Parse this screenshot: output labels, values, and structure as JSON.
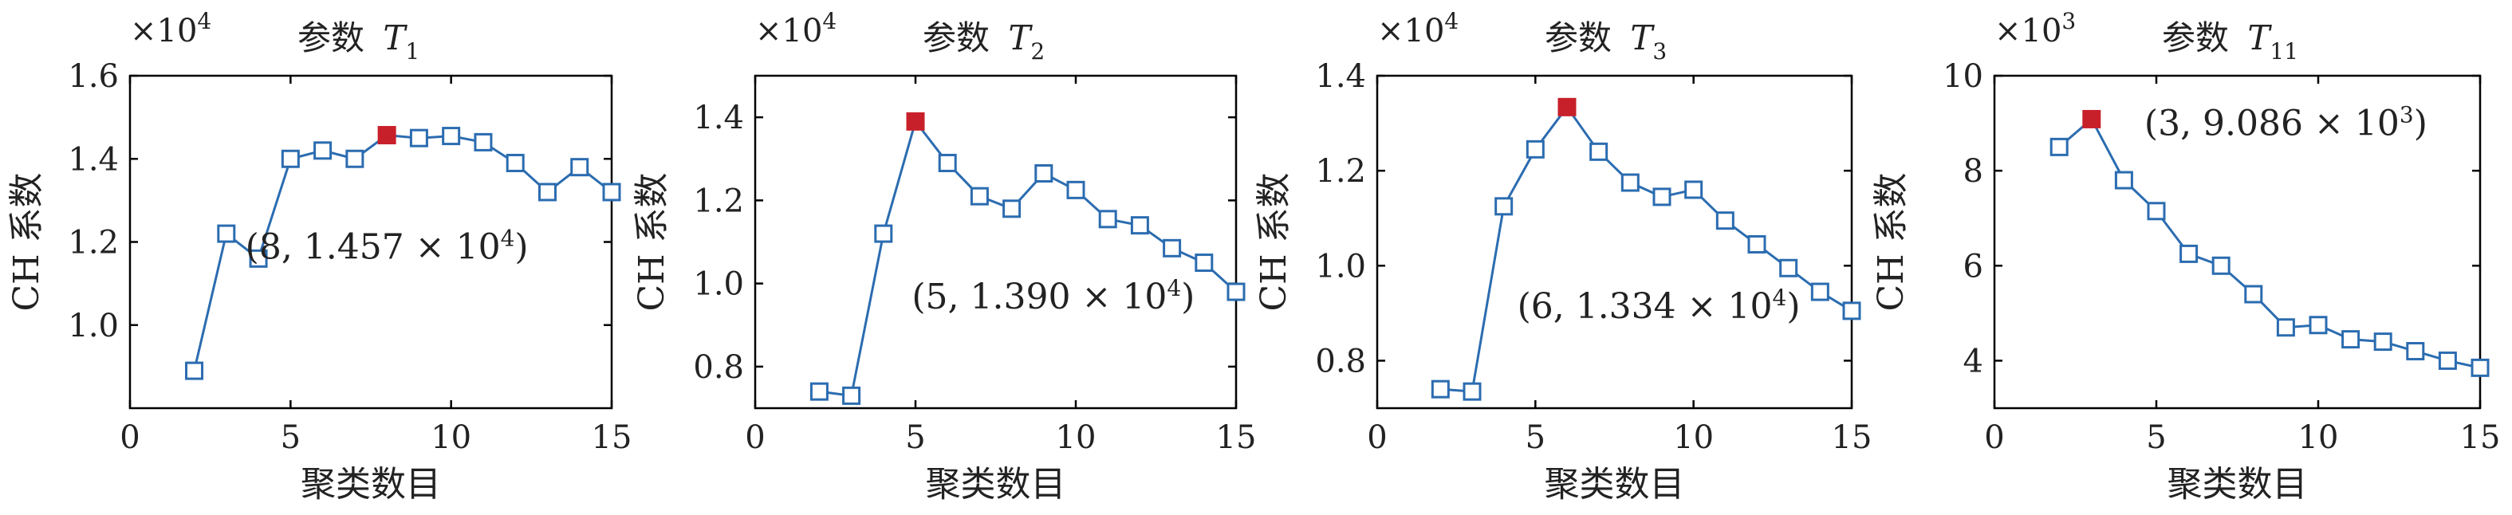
{
  "chart_data": [
    {
      "type": "line",
      "title_prefix": "参数",
      "title_var": "T",
      "title_sub": "1",
      "xlabel": "聚类数目",
      "ylabel": "CH 系数",
      "scale_base": "×10",
      "scale_exp": "4",
      "xlim": [
        0,
        15
      ],
      "ylim": [
        0.8,
        1.6
      ],
      "xticks": [
        "0",
        "5",
        "10",
        "15"
      ],
      "yticks": [
        "1.0",
        "1.2",
        "1.4",
        "1.6"
      ],
      "x": [
        2,
        3,
        4,
        5,
        6,
        7,
        8,
        9,
        10,
        11,
        12,
        13,
        14,
        15
      ],
      "values": [
        0.89,
        1.22,
        1.16,
        1.4,
        1.42,
        1.4,
        1.457,
        1.45,
        1.455,
        1.44,
        1.39,
        1.32,
        1.38,
        1.32
      ],
      "highlight_index": 6,
      "annotation_main": "(8, 1.457 × 10",
      "annotation_exp": "4",
      "annotation_end": ")",
      "annotation_pos": [
        8.0,
        1.16
      ],
      "colors": {
        "line": "#2b6cb0",
        "highlight": "#c8202b"
      }
    },
    {
      "type": "line",
      "title_prefix": "参数",
      "title_var": "T",
      "title_sub": "2",
      "xlabel": "聚类数目",
      "ylabel": "CH 系数",
      "scale_base": "×10",
      "scale_exp": "4",
      "xlim": [
        0,
        15
      ],
      "ylim": [
        0.7,
        1.5
      ],
      "xticks": [
        "0",
        "5",
        "10",
        "15"
      ],
      "yticks": [
        "0.8",
        "1.0",
        "1.2",
        "1.4"
      ],
      "x": [
        2,
        3,
        4,
        5,
        6,
        7,
        8,
        9,
        10,
        11,
        12,
        13,
        14,
        15
      ],
      "values": [
        0.74,
        0.73,
        1.12,
        1.39,
        1.29,
        1.21,
        1.18,
        1.265,
        1.225,
        1.155,
        1.14,
        1.085,
        1.05,
        0.98
      ],
      "highlight_index": 3,
      "annotation_main": "(5, 1.390 × 10",
      "annotation_exp": "4",
      "annotation_end": ")",
      "annotation_pos": [
        9.3,
        0.94
      ],
      "colors": {
        "line": "#2b6cb0",
        "highlight": "#c8202b"
      }
    },
    {
      "type": "line",
      "title_prefix": "参数",
      "title_var": "T",
      "title_sub": "3",
      "xlabel": "聚类数目",
      "ylabel": "CH 系数",
      "scale_base": "×10",
      "scale_exp": "4",
      "xlim": [
        0,
        15
      ],
      "ylim": [
        0.7,
        1.4
      ],
      "xticks": [
        "0",
        "5",
        "10",
        "15"
      ],
      "yticks": [
        "0.8",
        "1.0",
        "1.2",
        "1.4"
      ],
      "x": [
        2,
        3,
        4,
        5,
        6,
        7,
        8,
        9,
        10,
        11,
        12,
        13,
        14,
        15
      ],
      "values": [
        0.74,
        0.735,
        1.125,
        1.245,
        1.334,
        1.24,
        1.175,
        1.145,
        1.16,
        1.095,
        1.045,
        0.995,
        0.945,
        0.905
      ],
      "highlight_index": 4,
      "annotation_main": "(6, 1.334 × 10",
      "annotation_exp": "4",
      "annotation_end": ")",
      "annotation_pos": [
        8.9,
        0.89
      ],
      "colors": {
        "line": "#2b6cb0",
        "highlight": "#c8202b"
      }
    },
    {
      "type": "line",
      "title_prefix": "参数",
      "title_var": "T",
      "title_sub": "11",
      "xlabel": "聚类数目",
      "ylabel": "CH 系数",
      "scale_base": "×10",
      "scale_exp": "3",
      "xlim": [
        0,
        15
      ],
      "ylim": [
        3,
        10
      ],
      "xticks": [
        "0",
        "5",
        "10",
        "15"
      ],
      "yticks": [
        "4",
        "6",
        "8",
        "10"
      ],
      "x": [
        2,
        3,
        4,
        5,
        6,
        7,
        8,
        9,
        10,
        11,
        12,
        13,
        14,
        15
      ],
      "values": [
        8.5,
        9.086,
        7.8,
        7.15,
        6.25,
        6.0,
        5.4,
        4.7,
        4.75,
        4.45,
        4.4,
        4.2,
        4.0,
        3.85
      ],
      "highlight_index": 1,
      "annotation_main": "(3, 9.086 × 10",
      "annotation_exp": "3",
      "annotation_end": ")",
      "annotation_pos": [
        9.0,
        8.75
      ],
      "colors": {
        "line": "#2b6cb0",
        "highlight": "#c8202b"
      }
    }
  ]
}
